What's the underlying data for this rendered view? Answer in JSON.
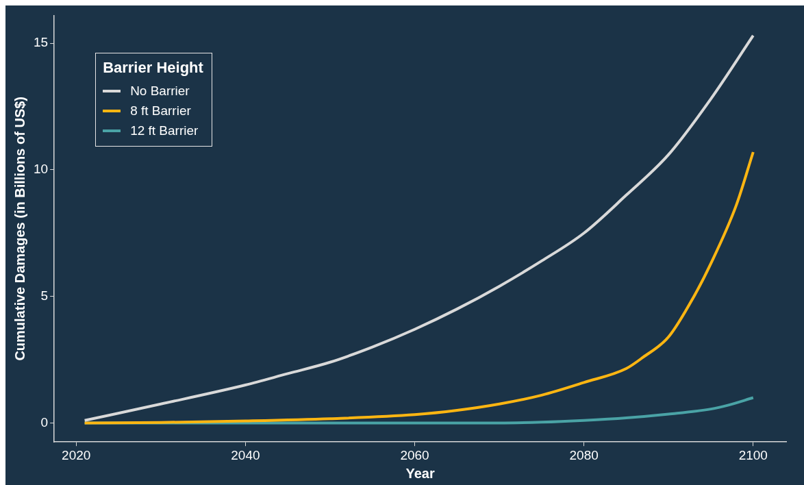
{
  "chart_data": {
    "type": "line",
    "xlabel": "Year",
    "ylabel": "Cumulative Damages (in Billions of US$)",
    "legend_title": "Barrier Height",
    "xlim": [
      2017.4,
      2103.9
    ],
    "xticks": [
      2020,
      2040,
      2060,
      2080,
      2100
    ],
    "ylim": [
      -0.75,
      16.1
    ],
    "yticks": [
      0,
      5,
      10,
      15
    ],
    "grid": false,
    "legend": "top left",
    "marker": "none",
    "line_style": "solid",
    "series": [
      {
        "name": "No Barrier",
        "color": "#d9d9d9",
        "x": [
          2021,
          2030,
          2040,
          2045,
          2050,
          2055,
          2060,
          2065,
          2070,
          2075,
          2080,
          2085,
          2090,
          2095,
          2100
        ],
        "values": [
          0.1,
          0.75,
          1.5,
          1.95,
          2.4,
          3.0,
          3.7,
          4.5,
          5.4,
          6.4,
          7.5,
          9.0,
          10.6,
          12.8,
          15.3
        ]
      },
      {
        "name": "8 ft Barrier",
        "color": "#ffb612",
        "x": [
          2021,
          2030,
          2040,
          2050,
          2060,
          2065,
          2070,
          2075,
          2080,
          2085,
          2087,
          2090,
          2093,
          2095,
          2098,
          2100
        ],
        "values": [
          0,
          0.02,
          0.08,
          0.17,
          0.33,
          0.5,
          0.75,
          1.1,
          1.6,
          2.15,
          2.6,
          3.4,
          5.0,
          6.3,
          8.6,
          10.7
        ]
      },
      {
        "name": "12 ft Barrier",
        "color": "#4aa3a6",
        "x": [
          2021,
          2040,
          2060,
          2070,
          2075,
          2080,
          2085,
          2090,
          2095,
          2097,
          2100
        ],
        "values": [
          0,
          0,
          0,
          0,
          0.03,
          0.1,
          0.2,
          0.35,
          0.55,
          0.7,
          1.0
        ]
      }
    ]
  }
}
